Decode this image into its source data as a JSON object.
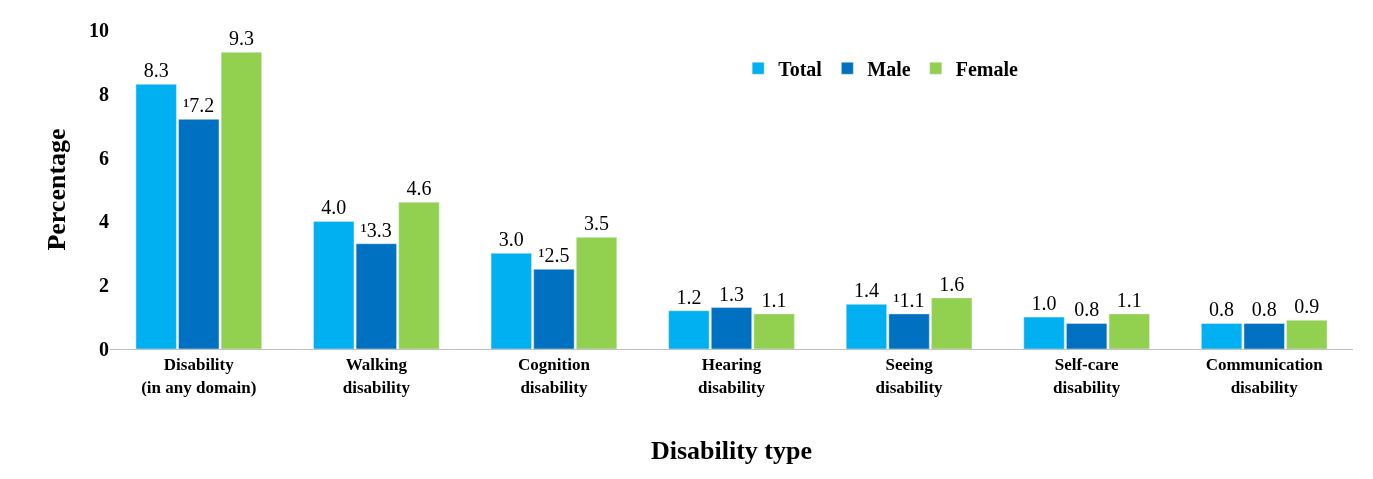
{
  "chart_data": {
    "type": "bar",
    "xlabel": "Disability type",
    "ylabel": "Percentage",
    "categories": [
      "Disability\n(in any domain)",
      "Walking\ndisability",
      "Cognition\ndisability",
      "Hearing\ndisability",
      "Seeing\ndisability",
      "Self-care\ndisability",
      "Communication\ndisability"
    ],
    "series": [
      {
        "name": "Total",
        "color": "#00b0f0",
        "values": [
          8.3,
          4.0,
          3.0,
          1.2,
          1.4,
          1.0,
          0.8
        ],
        "value_labels": [
          "8.3",
          "4.0",
          "3.0",
          "1.2",
          "1.4",
          "1.0",
          "0.8"
        ]
      },
      {
        "name": "Male",
        "color": "#0070c0",
        "values": [
          7.2,
          3.3,
          2.5,
          1.3,
          1.1,
          0.8,
          0.8
        ],
        "value_labels": [
          "¹7.2",
          "¹3.3",
          "¹2.5",
          "1.3",
          "¹1.1",
          "0.8",
          "0.8"
        ]
      },
      {
        "name": "Female",
        "color": "#92d050",
        "values": [
          9.3,
          4.6,
          3.5,
          1.1,
          1.6,
          1.1,
          0.9
        ],
        "value_labels": [
          "9.3",
          "4.6",
          "3.5",
          "1.1",
          "1.6",
          "1.1",
          "0.9"
        ]
      }
    ],
    "ylim": [
      0,
      10
    ],
    "yticks": [
      0,
      2,
      4,
      6,
      8,
      10
    ],
    "legend": "top"
  }
}
